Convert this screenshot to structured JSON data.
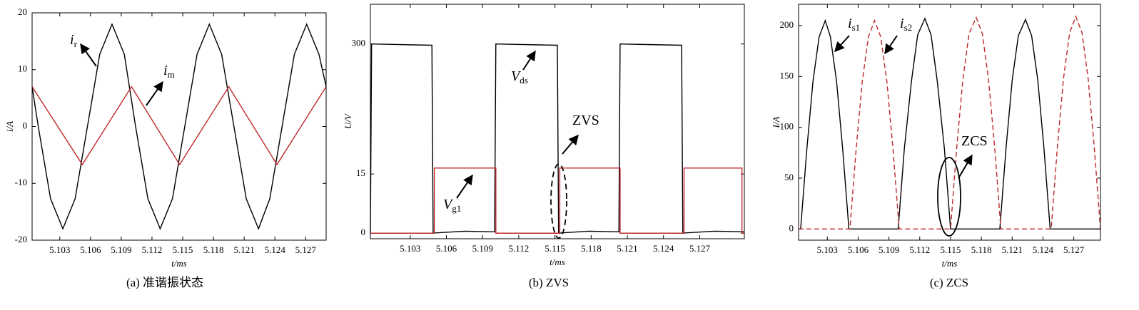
{
  "chart_data": [
    {
      "type": "line",
      "xlabel": "t/ms",
      "ylabel": "i/A",
      "caption": "(a) 准谐振状态",
      "xlim": [
        5.1003,
        5.129
      ],
      "xticks": [
        5.103,
        5.106,
        5.109,
        5.112,
        5.115,
        5.118,
        5.121,
        5.124,
        5.127
      ],
      "ylim": [
        -20,
        20
      ],
      "yticks": [
        -20,
        -10,
        0,
        10,
        20
      ],
      "series": [
        {
          "color": "#000000",
          "line_style": "solid",
          "x": [
            5.1003,
            5.1009,
            5.1021,
            5.1033,
            5.1045,
            5.1057,
            5.1069,
            5.1081,
            5.1093,
            5.1104,
            5.1116,
            5.1128,
            5.114,
            5.1152,
            5.1164,
            5.1176,
            5.1188,
            5.12,
            5.1212,
            5.1224,
            5.1235,
            5.1247,
            5.1259,
            5.1271,
            5.1283,
            5.129
          ],
          "values": [
            7,
            0,
            -12.7,
            -18,
            -12.7,
            0,
            12.7,
            18,
            12.7,
            0,
            -12.7,
            -18,
            -12.7,
            0,
            12.7,
            18,
            12.7,
            0,
            -12.7,
            -18,
            -12.7,
            0,
            12.7,
            18,
            12.7,
            7
          ]
        },
        {
          "color": "#c0282d",
          "line_style": "solid",
          "x": [
            5.1003,
            5.1052,
            5.11,
            5.1147,
            5.1195,
            5.1242,
            5.129
          ],
          "values": [
            7,
            -6.7,
            7,
            -6.7,
            7,
            -6.7,
            7
          ]
        }
      ],
      "annotations": [
        {
          "text": "i",
          "sub": "r"
        },
        {
          "text": "i",
          "sub": "m"
        }
      ]
    },
    {
      "type": "line",
      "xlabel": "t/ms",
      "ylabel": "U/V",
      "caption": "(b)  ZVS",
      "xlim": [
        5.0997,
        5.1307
      ],
      "xticks": [
        5.103,
        5.106,
        5.109,
        5.112,
        5.115,
        5.118,
        5.121,
        5.124,
        5.127
      ],
      "ylim": [
        -9,
        363
      ],
      "yticks": [
        0,
        300
      ],
      "y2lim": [
        -1.4,
        58
      ],
      "y2ticks": [
        15
      ],
      "series": [
        {
          "color": "#000000",
          "line_style": "solid",
          "x": [
            5.0997,
            5.0998,
            5.1048,
            5.1049,
            5.1075,
            5.11,
            5.1101,
            5.1152,
            5.1153,
            5.1178,
            5.1203,
            5.1204,
            5.1255,
            5.1256,
            5.1282,
            5.1307
          ],
          "values": [
            0,
            300,
            298,
            0,
            3,
            2,
            300,
            298,
            0,
            3,
            2,
            300,
            298,
            0,
            3,
            2
          ]
        },
        {
          "color": "#c0282d",
          "line_style": "solid",
          "axis": "y2",
          "x": [
            5.0997,
            5.105,
            5.105,
            5.1101,
            5.1101,
            5.1154,
            5.1154,
            5.1204,
            5.1204,
            5.1257,
            5.1257,
            5.1305,
            5.1305,
            5.1307
          ],
          "values": [
            0,
            0,
            16.5,
            16.5,
            0,
            0,
            16.5,
            16.5,
            0,
            0,
            16.5,
            16.5,
            0,
            0
          ]
        }
      ],
      "annotations": [
        {
          "text": "V",
          "sub": "ds"
        },
        {
          "text": "V",
          "sub": "g1"
        },
        {
          "text": "ZVS"
        }
      ]
    },
    {
      "type": "line",
      "xlabel": "t/ms",
      "ylabel": "I/A",
      "caption": "(c)  ZCS",
      "xlim": [
        5.1002,
        5.1296
      ],
      "xticks": [
        5.103,
        5.106,
        5.109,
        5.112,
        5.115,
        5.118,
        5.121,
        5.124,
        5.127
      ],
      "ylim": [
        -11,
        221
      ],
      "yticks": [
        0,
        50,
        100,
        150,
        200
      ],
      "series": [
        {
          "color": "#000000",
          "line_style": "solid",
          "x": [
            5.1002,
            5.1004,
            5.101,
            5.1016,
            5.1022,
            5.1028,
            5.1033,
            5.1039,
            5.1045,
            5.1051,
            5.1099,
            5.1105,
            5.1112,
            5.1118,
            5.1125,
            5.1131,
            5.1137,
            5.1144,
            5.115,
            5.1198,
            5.1204,
            5.121,
            5.1216,
            5.1223,
            5.1229,
            5.1235,
            5.1241,
            5.1247,
            5.1296
          ],
          "values": [
            0,
            0,
            78,
            145,
            189,
            205,
            189,
            145,
            78,
            0,
            0,
            79,
            146,
            191,
            207,
            191,
            146,
            79,
            0,
            0,
            79,
            146,
            190,
            206,
            190,
            146,
            79,
            0,
            0
          ]
        },
        {
          "color": "#c0282d",
          "line_style": "dashed",
          "x": [
            5.1002,
            5.1052,
            5.1058,
            5.1064,
            5.107,
            5.1076,
            5.1082,
            5.1088,
            5.1094,
            5.11,
            5.115,
            5.1156,
            5.1162,
            5.1168,
            5.1175,
            5.1181,
            5.1187,
            5.1193,
            5.1199,
            5.1248,
            5.1254,
            5.126,
            5.1266,
            5.1272,
            5.1278,
            5.1284,
            5.129,
            5.1296
          ],
          "values": [
            0,
            0,
            78,
            145,
            189,
            205,
            189,
            145,
            78,
            0,
            0,
            80,
            147,
            192,
            208,
            192,
            147,
            80,
            0,
            0,
            80,
            148,
            193,
            209,
            193,
            148,
            80,
            0
          ]
        }
      ],
      "annotations": [
        {
          "text": "i",
          "sub": "s1"
        },
        {
          "text": "i",
          "sub": "s2"
        },
        {
          "text": "ZCS"
        }
      ]
    }
  ]
}
